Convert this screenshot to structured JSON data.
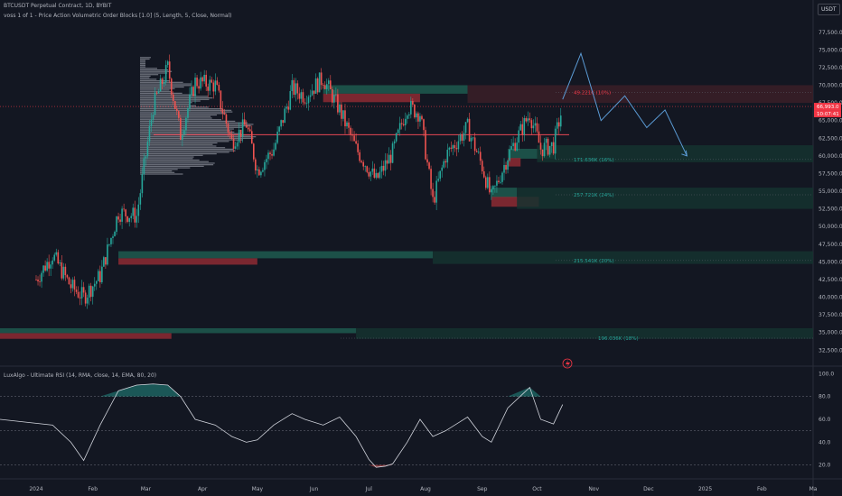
{
  "header": {
    "title": "BTCUSDT Perpetual Contract, 1D, BYBIT",
    "indicator": "voss 1 of 1 - Price Action Volumetric Order Blocks [1.0] (5, Length, 5, Close, Normal)",
    "currency_label": "USDT",
    "rsi_title": "LuxAlgo - Ultimate RSI (14, RMA, close, 14, EMA, 80, 20)"
  },
  "price_badges": [
    {
      "text": "66,993.0",
      "color": "#f23645"
    },
    {
      "text": "10:07:41",
      "color": "#f23645"
    }
  ],
  "chart_data": [
    {
      "type": "line",
      "chart_kind": "candlestick",
      "title": "BTCUSDT Perpetual Contract, 1D, BYBIT",
      "x_tick_labels": [
        "2024",
        "Feb",
        "Mar",
        "Apr",
        "May",
        "Jun",
        "Jul",
        "Aug",
        "Sep",
        "Oct",
        "Nov",
        "Dec",
        "2025",
        "Feb",
        "Ma"
      ],
      "y_tick_labels": [
        "32,500.0",
        "35,000.0",
        "37,500.0",
        "40,000.0",
        "42,500.0",
        "45,000.0",
        "47,500.0",
        "50,000.0",
        "52,500.0",
        "55,000.0",
        "57,500.0",
        "60,000.0",
        "62,500.0",
        "65,000.0",
        "67,500.0",
        "70,000.0",
        "72,500.0",
        "75,000.0",
        "77,500.0"
      ],
      "ylim": [
        31000,
        79000
      ],
      "grid": false,
      "close_path": {
        "x": [
          "2024-01-01",
          "2024-01-10",
          "2024-01-20",
          "2024-01-27",
          "2024-02-05",
          "2024-02-15",
          "2024-02-25",
          "2024-03-05",
          "2024-03-13",
          "2024-03-20",
          "2024-03-28",
          "2024-04-08",
          "2024-04-17",
          "2024-04-25",
          "2024-05-01",
          "2024-05-10",
          "2024-05-20",
          "2024-05-27",
          "2024-06-06",
          "2024-06-15",
          "2024-06-24",
          "2024-07-05",
          "2024-07-14",
          "2024-07-22",
          "2024-07-29",
          "2024-08-05",
          "2024-08-12",
          "2024-08-24",
          "2024-09-01",
          "2024-09-06",
          "2024-09-15",
          "2024-09-27",
          "2024-10-03",
          "2024-10-10",
          "2024-10-15"
        ],
        "y": [
          42500,
          46000,
          41500,
          40000,
          43000,
          52000,
          51500,
          67000,
          72500,
          63000,
          70500,
          70000,
          62000,
          64500,
          58000,
          61000,
          69500,
          68500,
          71000,
          66500,
          61000,
          56500,
          60500,
          67000,
          66000,
          53500,
          60000,
          64000,
          58500,
          54000,
          60000,
          66000,
          61000,
          61500,
          67000
        ]
      },
      "series": [
        {
          "name": "RSI",
          "ylim": [
            15,
            105
          ],
          "y_tick_labels": [
            "20.0",
            "40.0",
            "60.0",
            "80.0",
            "100.0"
          ],
          "x": [
            "2024-01-01",
            "2024-01-10",
            "2024-01-20",
            "2024-01-27",
            "2024-02-05",
            "2024-02-15",
            "2024-02-25",
            "2024-03-05",
            "2024-03-13",
            "2024-03-20",
            "2024-03-28",
            "2024-04-08",
            "2024-04-17",
            "2024-04-25",
            "2024-05-01",
            "2024-05-10",
            "2024-05-20",
            "2024-05-27",
            "2024-06-06",
            "2024-06-15",
            "2024-06-24",
            "2024-07-01",
            "2024-07-05",
            "2024-07-10",
            "2024-07-14",
            "2024-07-22",
            "2024-07-29",
            "2024-08-05",
            "2024-08-12",
            "2024-08-24",
            "2024-09-01",
            "2024-09-06",
            "2024-09-15",
            "2024-09-27",
            "2024-10-03",
            "2024-10-10",
            "2024-10-15"
          ],
          "y": [
            60,
            55,
            40,
            24,
            55,
            85,
            90,
            91,
            90,
            80,
            60,
            55,
            45,
            40,
            42,
            55,
            65,
            60,
            55,
            62,
            45,
            25,
            18,
            19,
            21,
            40,
            60,
            45,
            50,
            62,
            45,
            40,
            70,
            88,
            60,
            56,
            73
          ]
        }
      ],
      "order_blocks": [
        {
          "label": "49.221K (10%)",
          "level": 70000
        },
        {
          "label": "171.636K (16%)",
          "level": 60000
        },
        {
          "label": "257.721K (24%)",
          "level": 55000
        },
        {
          "label": "215.541K (20%)",
          "level": 45700
        },
        {
          "label": "196.036K (18%)",
          "level": 34700
        }
      ],
      "projection": {
        "x": [
          "2024-10-15",
          "2024-10-25",
          "2024-11-05",
          "2024-11-18",
          "2024-11-30",
          "2024-12-10",
          "2024-12-22"
        ],
        "y": [
          68000,
          74500,
          65000,
          68500,
          64000,
          66500,
          60000
        ]
      },
      "poc_level": 63000,
      "current_price": 66993
    }
  ],
  "colors": {
    "bg": "#131722",
    "bull": "#26a69a",
    "bear": "#ef5350",
    "bull_block": "#1e5b4f",
    "bear_block": "#8e2a32",
    "projection": "#5b9bd5",
    "rsi_line": "#d1d4dc",
    "axis_text": "#b2b5be"
  },
  "icons": {
    "flash": "flash-icon"
  }
}
